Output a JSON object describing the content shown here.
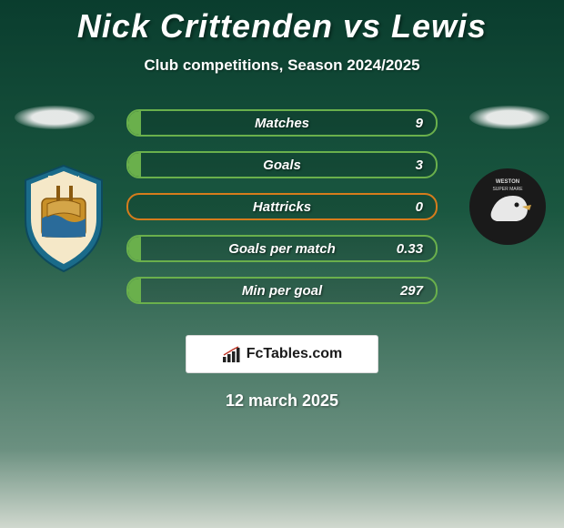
{
  "header": {
    "title": "Nick Crittenden vs Lewis",
    "subtitle": "Club competitions, Season 2024/2025"
  },
  "stats": [
    {
      "label": "Matches",
      "value_right": "9",
      "fill_percent": 4,
      "border_color": "#6ab04c",
      "fill_color": "#6ab04c"
    },
    {
      "label": "Goals",
      "value_right": "3",
      "fill_percent": 4,
      "border_color": "#6ab04c",
      "fill_color": "#6ab04c"
    },
    {
      "label": "Hattricks",
      "value_right": "0",
      "fill_percent": 0,
      "border_color": "#d67c1c",
      "fill_color": "#d67c1c"
    },
    {
      "label": "Goals per match",
      "value_right": "0.33",
      "fill_percent": 4,
      "border_color": "#6ab04c",
      "fill_color": "#6ab04c"
    },
    {
      "label": "Min per goal",
      "value_right": "297",
      "fill_percent": 4,
      "border_color": "#6ab04c",
      "fill_color": "#6ab04c"
    }
  ],
  "branding": {
    "text": "FcTables.com"
  },
  "date": "12 march 2025",
  "badges": {
    "left_name": "weymouth-badge",
    "right_name": "weston-super-mare-badge"
  },
  "colors": {
    "bg_top": "#0a3d2e",
    "bg_mid": "#1a5740",
    "bg_low": "#6b9080",
    "bg_bottom": "#d0d8ce",
    "title_color": "#ffffff"
  }
}
